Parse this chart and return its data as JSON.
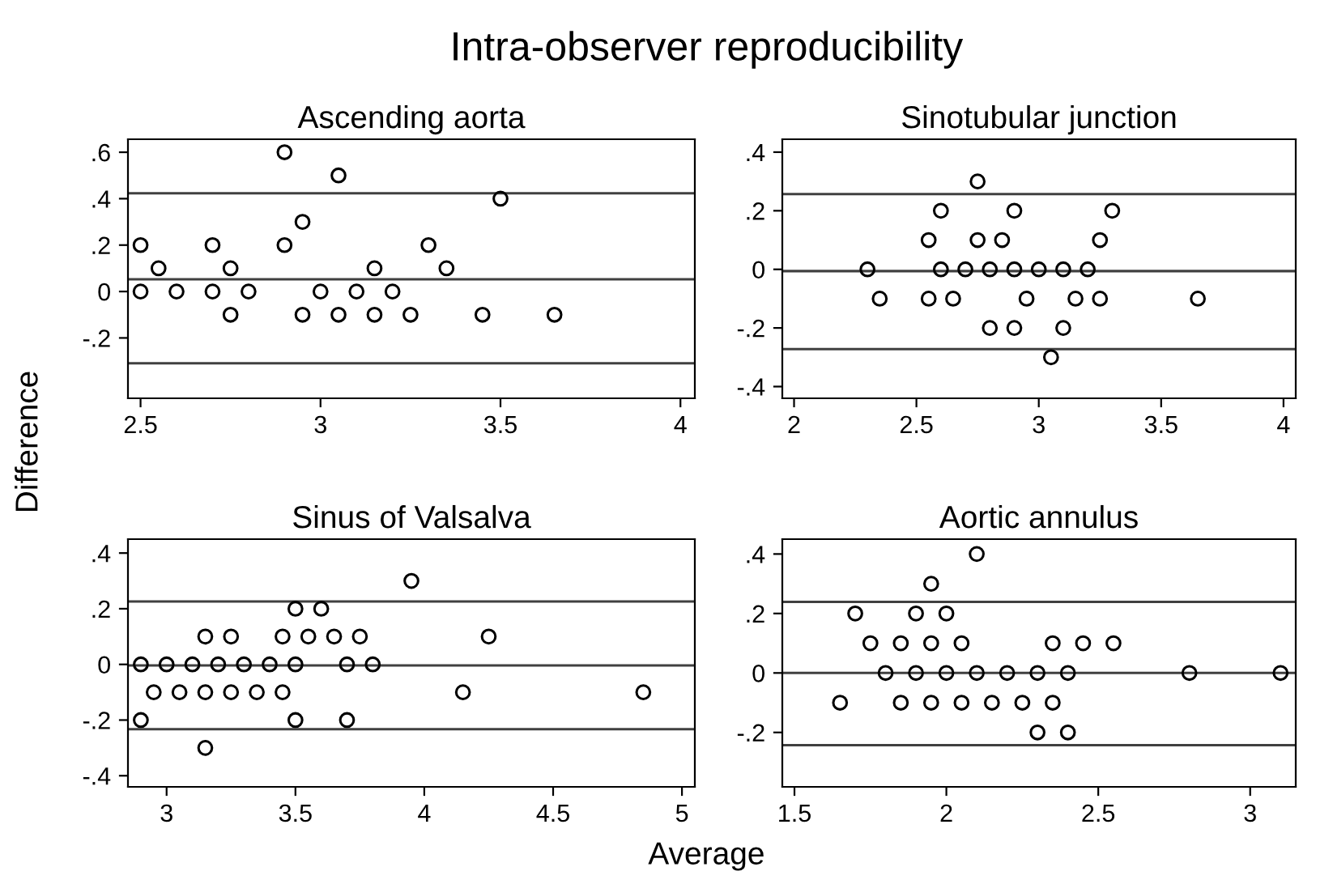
{
  "chart_data": [
    {
      "type": "scatter",
      "title": "Ascending aorta",
      "ylabel": "Difference",
      "annotations": [
        "Intra-observer reproducibility"
      ],
      "marker": "circle",
      "grid": false,
      "xlim": [
        2.465,
        4.04
      ],
      "ylim": [
        -0.46,
        0.656
      ],
      "xticks": [
        2.5,
        3,
        3.5,
        4
      ],
      "yticks": [
        {
          "value": -0.2,
          "label": "-.2"
        },
        0,
        {
          "value": 0.2,
          "label": ".2"
        },
        {
          "value": 0.4,
          "label": ".4"
        },
        {
          "value": 0.6,
          "label": ".6"
        }
      ],
      "ref_lines": [
        {
          "axis": "y",
          "value": 0.423,
          "color": "#404040"
        },
        {
          "axis": "y",
          "value": 0.053,
          "color": "#404040"
        },
        {
          "axis": "y",
          "value": -0.309,
          "color": "#404040"
        }
      ],
      "series": [
        {
          "color": "#000000",
          "x": [
            2.5,
            2.5,
            2.55,
            2.6,
            2.7,
            2.7,
            2.75,
            2.75,
            2.8,
            2.9,
            2.9,
            2.95,
            2.95,
            3.0,
            3.05,
            3.05,
            3.1,
            3.15,
            3.15,
            3.2,
            3.25,
            3.3,
            3.35,
            3.45,
            3.5,
            3.65
          ],
          "values": [
            0.2,
            0,
            0.1,
            0,
            0.2,
            0,
            0.1,
            -0.1,
            0,
            0.6,
            0.2,
            0.3,
            -0.1,
            0,
            0.5,
            -0.1,
            0,
            0.1,
            -0.1,
            0,
            -0.1,
            0.2,
            0.1,
            -0.1,
            0.4,
            -0.1
          ]
        }
      ]
    },
    {
      "type": "scatter",
      "title": "Sinotubular junction",
      "marker": "circle",
      "grid": false,
      "xlim": [
        1.952,
        4.05
      ],
      "ylim": [
        -0.44,
        0.444
      ],
      "xticks": [
        2,
        2.5,
        3,
        3.5,
        4
      ],
      "yticks": [
        {
          "value": -0.4,
          "label": "-.4"
        },
        {
          "value": -0.2,
          "label": "-.2"
        },
        0,
        {
          "value": 0.2,
          "label": ".2"
        },
        {
          "value": 0.4,
          "label": ".4"
        }
      ],
      "ref_lines": [
        {
          "axis": "y",
          "value": 0.257,
          "color": "#404040"
        },
        {
          "axis": "y",
          "value": -0.006,
          "color": "#404040"
        },
        {
          "axis": "y",
          "value": -0.272,
          "color": "#404040"
        }
      ],
      "series": [
        {
          "color": "#000000",
          "x": [
            2.3,
            2.35,
            2.55,
            2.55,
            2.6,
            2.6,
            2.65,
            2.7,
            2.75,
            2.75,
            2.8,
            2.8,
            2.85,
            2.9,
            2.9,
            2.9,
            2.95,
            3.0,
            3.05,
            3.1,
            3.1,
            3.15,
            3.2,
            3.25,
            3.25,
            3.3,
            3.65
          ],
          "values": [
            0,
            -0.1,
            0.1,
            -0.1,
            0.2,
            0,
            -0.1,
            0,
            0.3,
            0.1,
            0,
            -0.2,
            0.1,
            0.2,
            0,
            -0.2,
            -0.1,
            0,
            -0.3,
            0,
            -0.2,
            -0.1,
            0,
            0.1,
            -0.1,
            0.2,
            -0.1
          ]
        }
      ]
    },
    {
      "type": "scatter",
      "title": "Sinus of Valsalva",
      "xlabel": "Average",
      "marker": "circle",
      "grid": false,
      "xlim": [
        2.85,
        5.05
      ],
      "ylim": [
        -0.44,
        0.45
      ],
      "xticks": [
        3,
        3.5,
        4,
        4.5,
        5
      ],
      "yticks": [
        {
          "value": -0.4,
          "label": "-.4"
        },
        {
          "value": -0.2,
          "label": "-.2"
        },
        0,
        {
          "value": 0.2,
          "label": ".2"
        },
        {
          "value": 0.4,
          "label": ".4"
        }
      ],
      "ref_lines": [
        {
          "axis": "y",
          "value": 0.226,
          "color": "#404040"
        },
        {
          "axis": "y",
          "value": -0.004,
          "color": "#404040"
        },
        {
          "axis": "y",
          "value": -0.233,
          "color": "#404040"
        }
      ],
      "series": [
        {
          "color": "#000000",
          "x": [
            2.9,
            2.9,
            2.95,
            3.0,
            3.05,
            3.1,
            3.15,
            3.15,
            3.15,
            3.2,
            3.25,
            3.25,
            3.3,
            3.35,
            3.4,
            3.45,
            3.45,
            3.5,
            3.5,
            3.5,
            3.55,
            3.6,
            3.65,
            3.7,
            3.7,
            3.75,
            3.8,
            3.95,
            4.15,
            4.25,
            4.85
          ],
          "values": [
            0,
            -0.2,
            -0.1,
            0,
            -0.1,
            0,
            0.1,
            -0.1,
            -0.3,
            0,
            0.1,
            -0.1,
            0,
            -0.1,
            0,
            0.1,
            -0.1,
            0.2,
            0,
            -0.2,
            0.1,
            0.2,
            0.1,
            0,
            -0.2,
            0.1,
            0,
            0.3,
            -0.1,
            0.1,
            -0.1
          ]
        }
      ]
    },
    {
      "type": "scatter",
      "title": "Aortic annulus",
      "marker": "circle",
      "grid": false,
      "xlim": [
        1.46,
        3.15
      ],
      "ylim": [
        -0.383,
        0.45
      ],
      "xticks": [
        1.5,
        2,
        2.5,
        3
      ],
      "yticks": [
        {
          "value": -0.2,
          "label": "-.2"
        },
        0,
        {
          "value": 0.2,
          "label": ".2"
        },
        {
          "value": 0.4,
          "label": ".4"
        }
      ],
      "ref_lines": [
        {
          "axis": "y",
          "value": 0.239,
          "color": "#404040"
        },
        {
          "axis": "y",
          "value": 0,
          "color": "#404040"
        },
        {
          "axis": "y",
          "value": -0.243,
          "color": "#404040"
        }
      ],
      "series": [
        {
          "color": "#000000",
          "x": [
            1.65,
            1.7,
            1.75,
            1.8,
            1.85,
            1.85,
            1.9,
            1.9,
            1.95,
            1.95,
            1.95,
            2.0,
            2.0,
            2.05,
            2.05,
            2.1,
            2.1,
            2.15,
            2.2,
            2.25,
            2.3,
            2.3,
            2.35,
            2.35,
            2.4,
            2.4,
            2.45,
            2.55,
            2.8,
            3.1
          ],
          "values": [
            -0.1,
            0.2,
            0.1,
            0,
            0.1,
            -0.1,
            0.2,
            0,
            0.3,
            0.1,
            -0.1,
            0.2,
            0,
            0.1,
            -0.1,
            0.4,
            0,
            -0.1,
            0,
            -0.1,
            0,
            -0.2,
            0.1,
            -0.1,
            0,
            -0.2,
            0.1,
            0.1,
            0,
            0
          ]
        }
      ]
    }
  ]
}
